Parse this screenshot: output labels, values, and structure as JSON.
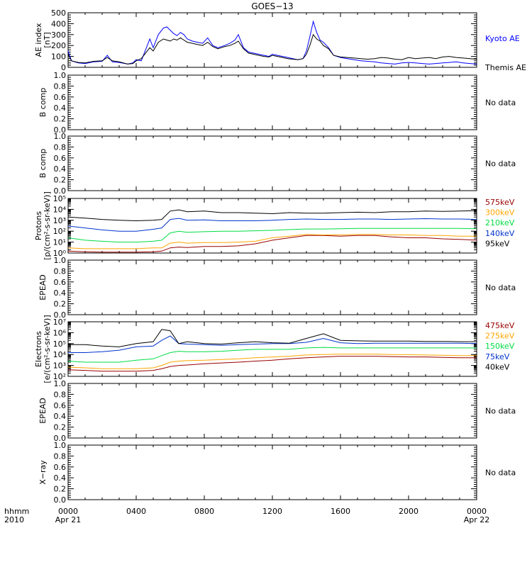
{
  "title": "GOES−13",
  "chart_data": [
    {
      "id": "ae",
      "type": "line",
      "ylabel": [
        "AE index",
        "[nT]"
      ],
      "ylim": [
        0,
        500
      ],
      "yticks": [
        "0",
        "100",
        "200",
        "300",
        "400",
        "500"
      ],
      "series": [
        {
          "name": "Kyoto AE",
          "color": "#0000ff",
          "x": [
            0,
            0.2,
            0.6,
            1,
            1.5,
            2,
            2.3,
            2.6,
            3,
            3.5,
            3.8,
            4,
            4.3,
            4.6,
            4.8,
            5,
            5.3,
            5.6,
            5.8,
            6,
            6.2,
            6.4,
            6.6,
            6.8,
            7,
            7.3,
            7.6,
            7.9,
            8.2,
            8.5,
            8.8,
            9.2,
            9.5,
            9.8,
            10,
            10.3,
            10.6,
            10.9,
            11.2,
            11.5,
            11.8,
            12,
            12.3,
            12.6,
            12.9,
            13.2,
            13.5,
            13.8,
            14,
            14.2,
            14.4,
            14.6,
            14.8,
            15,
            15.3,
            15.6,
            16,
            16.4,
            16.8,
            17.2,
            17.6,
            18,
            18.4,
            18.8,
            19.2,
            19.6,
            20,
            20.4,
            20.8,
            21.2,
            21.6,
            22,
            22.4,
            22.8,
            23.2,
            23.6,
            24
          ],
          "y": [
            150,
            60,
            40,
            35,
            50,
            55,
            110,
            50,
            45,
            30,
            40,
            70,
            60,
            180,
            260,
            180,
            300,
            360,
            370,
            340,
            310,
            290,
            320,
            300,
            260,
            240,
            230,
            220,
            270,
            200,
            180,
            200,
            220,
            250,
            300,
            180,
            140,
            130,
            120,
            110,
            100,
            120,
            110,
            100,
            90,
            80,
            70,
            80,
            150,
            280,
            420,
            320,
            250,
            230,
            180,
            110,
            90,
            80,
            70,
            60,
            55,
            50,
            40,
            35,
            30,
            40,
            45,
            40,
            35,
            30,
            35,
            40,
            45,
            50,
            40,
            35,
            30
          ]
        },
        {
          "name": "Themis AE",
          "color": "#000000",
          "x": [
            0,
            0.2,
            0.6,
            1,
            1.5,
            2,
            2.3,
            2.6,
            3,
            3.5,
            3.8,
            4,
            4.3,
            4.6,
            4.8,
            5,
            5.3,
            5.6,
            5.8,
            6,
            6.2,
            6.4,
            6.6,
            6.8,
            7,
            7.3,
            7.6,
            7.9,
            8.2,
            8.5,
            8.8,
            9.2,
            9.5,
            9.8,
            10,
            10.3,
            10.6,
            10.9,
            11.2,
            11.5,
            11.8,
            12,
            12.3,
            12.6,
            12.9,
            13.2,
            13.5,
            13.8,
            14,
            14.2,
            14.4,
            14.6,
            14.8,
            15,
            15.3,
            15.6,
            16,
            16.4,
            16.8,
            17.2,
            17.6,
            18,
            18.4,
            18.8,
            19.2,
            19.6,
            20,
            20.4,
            20.8,
            21.2,
            21.6,
            22,
            22.4,
            22.8,
            23.2,
            23.6,
            24
          ],
          "y": [
            120,
            60,
            45,
            40,
            55,
            60,
            90,
            60,
            50,
            30,
            35,
            60,
            80,
            140,
            180,
            150,
            230,
            260,
            250,
            240,
            260,
            250,
            270,
            250,
            230,
            220,
            210,
            200,
            230,
            190,
            170,
            190,
            200,
            220,
            240,
            170,
            130,
            120,
            110,
            100,
            95,
            110,
            100,
            90,
            80,
            75,
            70,
            80,
            120,
            200,
            300,
            260,
            240,
            200,
            170,
            110,
            95,
            90,
            85,
            80,
            75,
            80,
            90,
            85,
            75,
            70,
            90,
            80,
            85,
            90,
            80,
            95,
            100,
            90,
            85,
            80,
            75
          ]
        }
      ]
    },
    {
      "id": "bcomp1",
      "type": "line",
      "ylabel": [
        "B comp"
      ],
      "ylim": [
        0,
        1
      ],
      "yticks": [
        "0.0",
        "0.2",
        "0.4",
        "0.6",
        "0.8",
        "1.0"
      ],
      "note": "No data",
      "series": []
    },
    {
      "id": "bcomp2",
      "type": "line",
      "ylabel": [
        "B comp"
      ],
      "ylim": [
        0,
        1
      ],
      "yticks": [
        "0.0",
        "0.2",
        "0.4",
        "0.6",
        "0.8",
        "1.0"
      ],
      "note": "No data",
      "series": []
    },
    {
      "id": "protons",
      "type": "line",
      "log": true,
      "ylabel": [
        "Protons",
        "[p/(cm²-s-sr-keV)]"
      ],
      "ylim": [
        1,
        100000
      ],
      "yticks": [
        "10⁰",
        "10¹",
        "10²",
        "10³",
        "10⁴",
        "10⁵"
      ],
      "series": [
        {
          "name": "575keV",
          "color": "#990000",
          "x": [
            0,
            1,
            2,
            3,
            4,
            5,
            5.5,
            6,
            6.5,
            7,
            8,
            9,
            10,
            11,
            12,
            13,
            14,
            15,
            16,
            17,
            18,
            19,
            20,
            21,
            22,
            23,
            24
          ],
          "y": [
            1.5,
            1.3,
            1.2,
            1.2,
            1.2,
            1.3,
            1.5,
            3,
            3.5,
            3.2,
            4,
            4,
            4.5,
            7,
            15,
            25,
            40,
            40,
            35,
            40,
            40,
            30,
            25,
            25,
            20,
            18,
            15
          ]
        },
        {
          "name": "300keV",
          "color": "#ffa500",
          "x": [
            0,
            1,
            2,
            3,
            4,
            5,
            5.5,
            6,
            6.5,
            7,
            8,
            9,
            10,
            11,
            12,
            13,
            14,
            15,
            16,
            17,
            18,
            19,
            20,
            21,
            22,
            23,
            24
          ],
          "y": [
            3,
            2.5,
            2.5,
            2.5,
            2.5,
            3,
            3,
            8,
            10,
            8,
            9,
            9,
            10,
            12,
            25,
            35,
            50,
            45,
            45,
            50,
            50,
            45,
            45,
            40,
            40,
            35,
            35
          ]
        },
        {
          "name": "210keV",
          "color": "#00dd44",
          "x": [
            0,
            1,
            2,
            3,
            4,
            5,
            5.5,
            6,
            6.5,
            7,
            8,
            9,
            10,
            11,
            12,
            13,
            14,
            15,
            16,
            17,
            18,
            19,
            20,
            21,
            22,
            23,
            24
          ],
          "y": [
            25,
            15,
            12,
            10,
            10,
            12,
            15,
            70,
            100,
            80,
            90,
            100,
            100,
            110,
            120,
            140,
            160,
            160,
            170,
            180,
            180,
            180,
            180,
            180,
            180,
            180,
            170
          ]
        },
        {
          "name": "140keV",
          "color": "#0033cc",
          "x": [
            0,
            1,
            2,
            3,
            4,
            5,
            5.5,
            6,
            6.5,
            7,
            8,
            9,
            10,
            11,
            12,
            13,
            14,
            15,
            16,
            17,
            18,
            19,
            20,
            21,
            22,
            23,
            24
          ],
          "y": [
            300,
            200,
            130,
            100,
            100,
            150,
            200,
            1200,
            1500,
            1000,
            1100,
            900,
            900,
            900,
            1000,
            1200,
            1300,
            1200,
            1200,
            1300,
            1300,
            1200,
            1300,
            1400,
            1300,
            1300,
            1200
          ]
        },
        {
          "name": "95keV",
          "color": "#000000",
          "x": [
            0,
            1,
            2,
            3,
            4,
            5,
            5.5,
            6,
            6.5,
            7,
            8,
            9,
            10,
            11,
            12,
            13,
            14,
            15,
            16,
            17,
            18,
            19,
            20,
            21,
            22,
            23,
            24
          ],
          "y": [
            2000,
            1600,
            1200,
            1000,
            900,
            1000,
            1200,
            7000,
            9000,
            6000,
            7000,
            5000,
            5000,
            4500,
            4000,
            5000,
            4500,
            4500,
            5000,
            5500,
            5000,
            6000,
            6000,
            7000,
            6500,
            7000,
            7500
          ]
        }
      ]
    },
    {
      "id": "epead1",
      "type": "line",
      "ylabel": [
        "EPEAD"
      ],
      "ylim": [
        0,
        1
      ],
      "yticks": [
        "0.0",
        "0.2",
        "0.4",
        "0.6",
        "0.8",
        "1.0"
      ],
      "note": "No data",
      "series": []
    },
    {
      "id": "electrons",
      "type": "line",
      "log": true,
      "ylabel": [
        "Electrons",
        "[e/(cm²-s-sr-keV)]"
      ],
      "ylim": [
        100,
        10000000
      ],
      "yticks": [
        "10²",
        "10³",
        "10⁴",
        "10⁵",
        "10⁶",
        "10⁷"
      ],
      "series": [
        {
          "name": "475keV",
          "color": "#990000",
          "x": [
            0,
            1,
            2,
            3,
            4,
            5,
            5.5,
            6,
            6.5,
            7,
            8,
            9,
            10,
            11,
            12,
            13,
            14,
            15,
            16,
            17,
            18,
            19,
            20,
            21,
            22,
            23,
            24
          ],
          "y": [
            400,
            350,
            300,
            300,
            300,
            350,
            500,
            800,
            1000,
            1100,
            1400,
            1700,
            2000,
            2500,
            3000,
            4000,
            5000,
            6000,
            7000,
            7000,
            7000,
            6500,
            6000,
            6000,
            5500,
            5000,
            5000
          ]
        },
        {
          "name": "275keV",
          "color": "#ffa500",
          "x": [
            0,
            1,
            2,
            3,
            4,
            5,
            5.5,
            6,
            6.5,
            7,
            8,
            9,
            10,
            11,
            12,
            13,
            14,
            15,
            16,
            17,
            18,
            19,
            20,
            21,
            22,
            23,
            24
          ],
          "y": [
            700,
            600,
            500,
            500,
            500,
            600,
            1000,
            2000,
            2500,
            2800,
            3000,
            3500,
            4000,
            5000,
            6000,
            7000,
            9000,
            10000,
            11000,
            11000,
            11000,
            10000,
            9500,
            9000,
            8500,
            8000,
            8000
          ]
        },
        {
          "name": "150keV",
          "color": "#00dd44",
          "x": [
            0,
            1,
            2,
            3,
            4,
            5,
            5.5,
            6,
            6.5,
            7,
            8,
            9,
            10,
            11,
            12,
            13,
            14,
            15,
            16,
            17,
            18,
            19,
            20,
            21,
            22,
            23,
            24
          ],
          "y": [
            2500,
            2000,
            2000,
            2000,
            3000,
            4000,
            8000,
            15000,
            20000,
            18000,
            18000,
            20000,
            25000,
            30000,
            30000,
            30000,
            40000,
            45000,
            40000,
            40000,
            40000,
            40000,
            40000,
            40000,
            40000,
            40000,
            40000
          ]
        },
        {
          "name": "75keV",
          "color": "#0033cc",
          "x": [
            0,
            1,
            2,
            3,
            4,
            5,
            5.5,
            6,
            6.5,
            7,
            8,
            9,
            10,
            11,
            12,
            13,
            14,
            15,
            16,
            17,
            18,
            19,
            20,
            21,
            22,
            23,
            24
          ],
          "y": [
            15000,
            15000,
            18000,
            25000,
            50000,
            60000,
            200000,
            500000,
            100000,
            90000,
            80000,
            70000,
            80000,
            90000,
            100000,
            100000,
            130000,
            300000,
            120000,
            100000,
            110000,
            110000,
            110000,
            110000,
            110000,
            110000,
            100000
          ]
        },
        {
          "name": "40keV",
          "color": "#000000",
          "x": [
            0,
            1,
            2,
            3,
            4,
            5,
            5.5,
            6,
            6.5,
            7,
            8,
            9,
            10,
            11,
            12,
            13,
            14,
            15,
            16,
            17,
            18,
            19,
            20,
            21,
            22,
            23,
            24
          ],
          "y": [
            80000,
            80000,
            60000,
            50000,
            100000,
            150000,
            2000000,
            1500000,
            100000,
            150000,
            100000,
            90000,
            120000,
            150000,
            120000,
            110000,
            300000,
            800000,
            200000,
            180000,
            170000,
            170000,
            170000,
            160000,
            160000,
            150000,
            150000
          ]
        }
      ]
    },
    {
      "id": "epead2",
      "type": "line",
      "ylabel": [
        "EPEAD"
      ],
      "ylim": [
        0,
        1
      ],
      "yticks": [
        "0.0",
        "0.2",
        "0.4",
        "0.6",
        "0.8",
        "1.0"
      ],
      "note": "No data",
      "series": []
    },
    {
      "id": "xray",
      "type": "line",
      "ylabel": [
        "X−ray"
      ],
      "ylim": [
        0,
        1
      ],
      "yticks": [
        "0.0",
        "0.2",
        "0.4",
        "0.6",
        "0.8",
        "1.0"
      ],
      "note": "No data",
      "series": []
    }
  ],
  "x_axis": {
    "corner_label": [
      "hhmm",
      "2010"
    ],
    "ticks": [
      "0000",
      "0400",
      "0800",
      "1200",
      "1600",
      "2000",
      "0000"
    ],
    "dates": [
      "Apr 21",
      "Apr 22"
    ],
    "range_hours": [
      0,
      24
    ]
  }
}
